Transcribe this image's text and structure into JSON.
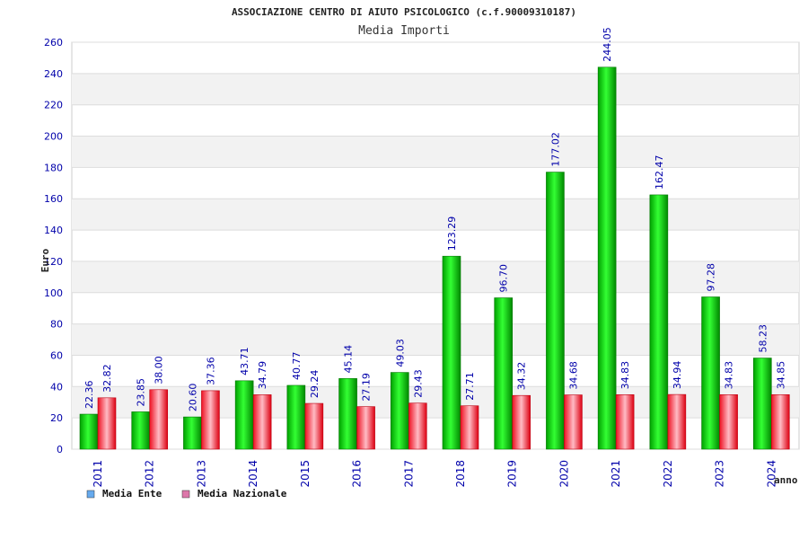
{
  "chart_data": {
    "type": "bar",
    "title": "ASSOCIAZIONE CENTRO DI AIUTO PSICOLOGICO (c.f.90009310187)",
    "subtitle": "Media Importi",
    "xlabel": "anno",
    "ylabel": "Euro",
    "ylim": [
      0,
      260
    ],
    "ytick_step": 20,
    "grid": true,
    "legend_position": "bottom-left",
    "categories": [
      "2011",
      "2012",
      "2013",
      "2014",
      "2015",
      "2016",
      "2017",
      "2018",
      "2019",
      "2020",
      "2021",
      "2022",
      "2023",
      "2024"
    ],
    "series": [
      {
        "name": "Media Ente",
        "color": "#00cc00",
        "legend_color": "#66aaee",
        "values": [
          22.36,
          23.85,
          20.6,
          43.71,
          40.77,
          45.14,
          49.03,
          123.29,
          96.7,
          177.02,
          244.05,
          162.47,
          97.28,
          58.23
        ],
        "labels": [
          "22.36",
          "23.85",
          "20.60",
          "43.71",
          "40.77",
          "45.14",
          "49.03",
          "123.29",
          "96.70",
          "177.02",
          "244.05",
          "162.47",
          "97.28",
          "58.23"
        ]
      },
      {
        "name": "Media Nazionale",
        "color": "#ee1122",
        "legend_color": "#dd77aa",
        "values": [
          32.82,
          38.0,
          37.36,
          34.79,
          29.24,
          27.19,
          29.43,
          27.71,
          34.32,
          34.68,
          34.83,
          34.94,
          34.83,
          34.85
        ],
        "labels": [
          "32.82",
          "38.00",
          "37.36",
          "34.79",
          "29.24",
          "27.19",
          "29.43",
          "27.71",
          "34.32",
          "34.68",
          "34.83",
          "34.94",
          "34.83",
          "34.85"
        ]
      }
    ]
  }
}
